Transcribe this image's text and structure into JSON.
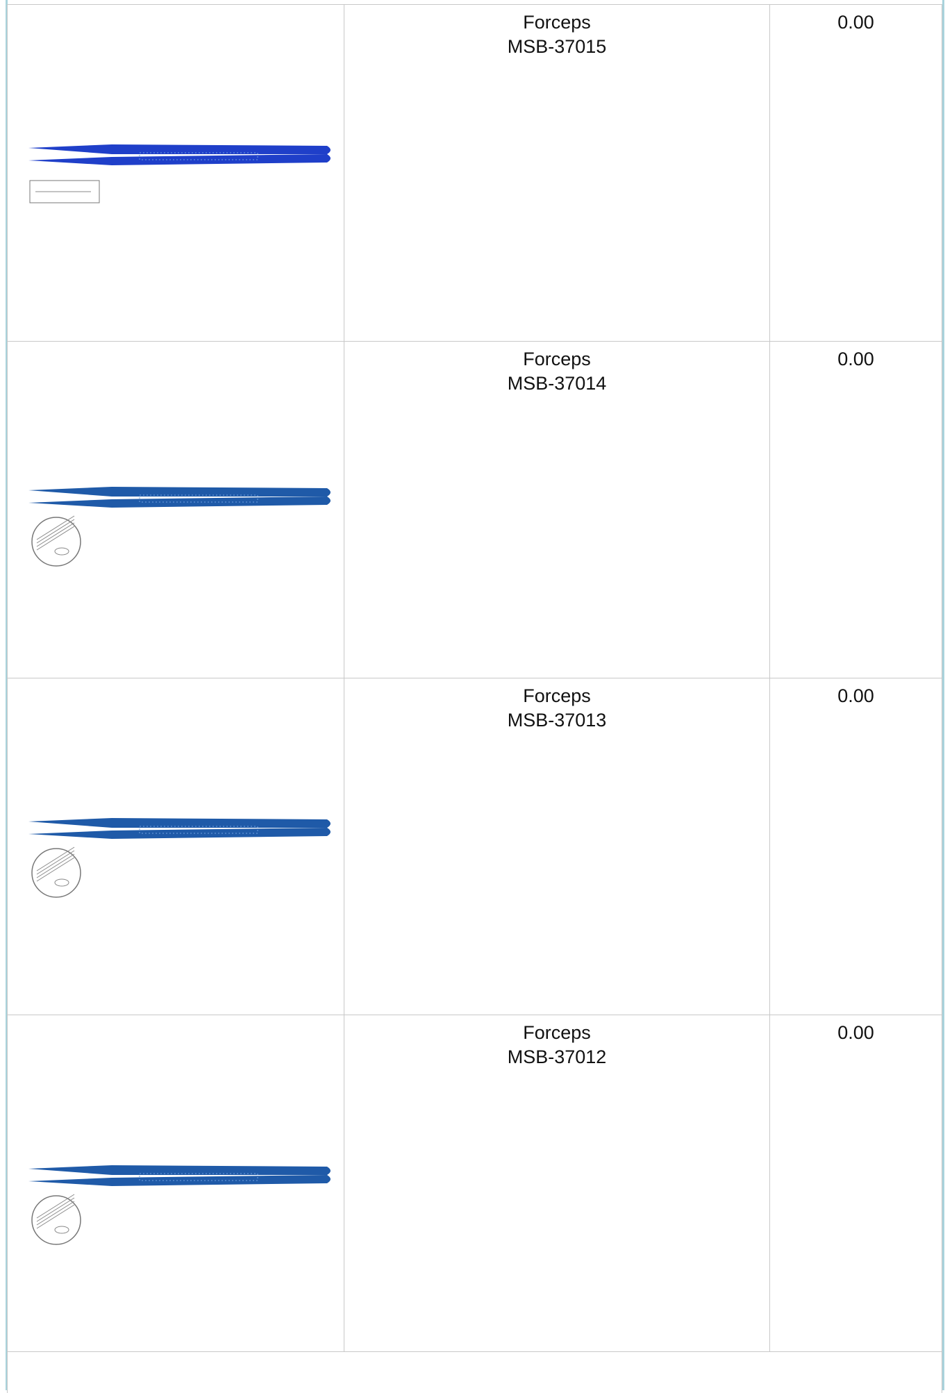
{
  "products": [
    {
      "name": "Forceps",
      "code": "MSB-37015",
      "price": "0.00"
    },
    {
      "name": "Forceps",
      "code": "MSB-37014",
      "price": "0.00"
    },
    {
      "name": "Forceps",
      "code": "MSB-37013",
      "price": "0.00"
    },
    {
      "name": "Forceps",
      "code": "MSB-37012",
      "price": "0.00"
    }
  ]
}
